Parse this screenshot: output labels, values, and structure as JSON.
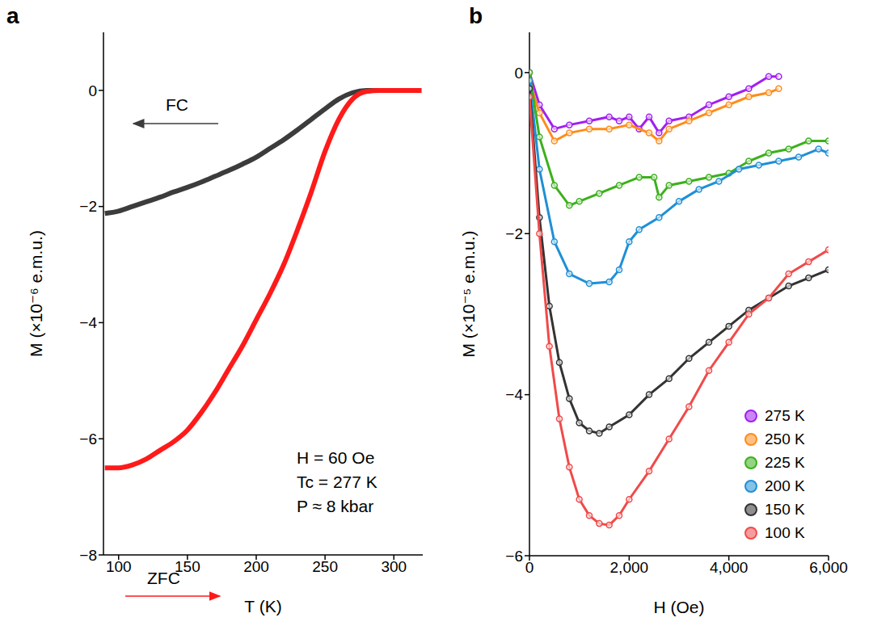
{
  "chart_data": [
    {
      "type": "line",
      "title": "a",
      "x_label": "T (K)",
      "y_label": "M (×10⁻⁶ e.m.u.)",
      "x": [
        90,
        100,
        110,
        120,
        130,
        140,
        150,
        160,
        170,
        180,
        190,
        200,
        210,
        220,
        230,
        240,
        250,
        260,
        270,
        280,
        290,
        300,
        310,
        320
      ],
      "series": [
        {
          "name": "FC",
          "color": "#3c3c3c",
          "values": [
            -2.12,
            -2.08,
            -2.0,
            -1.92,
            -1.84,
            -1.75,
            -1.67,
            -1.58,
            -1.48,
            -1.38,
            -1.27,
            -1.15,
            -1.0,
            -0.85,
            -0.68,
            -0.5,
            -0.32,
            -0.15,
            -0.04,
            0,
            0,
            0,
            0,
            0
          ]
        },
        {
          "name": "ZFC",
          "color": "#ff1a1a",
          "values": [
            -6.5,
            -6.5,
            -6.45,
            -6.35,
            -6.2,
            -6.05,
            -5.85,
            -5.55,
            -5.2,
            -4.8,
            -4.4,
            -3.95,
            -3.5,
            -3.0,
            -2.4,
            -1.75,
            -1.05,
            -0.5,
            -0.15,
            -0.02,
            0,
            0,
            0,
            0
          ]
        }
      ],
      "xlim": [
        89,
        321
      ],
      "ylim": [
        -8,
        1
      ],
      "xticks": [
        100,
        150,
        200,
        250,
        300
      ],
      "yticks": [
        -8,
        -6,
        -4,
        -2,
        0
      ],
      "line_style": "solid",
      "annotations": [
        "H = 60 Oe",
        "Tc = 277 K",
        "P ≈ 8 kbar"
      ]
    },
    {
      "type": "scatter",
      "title": "b",
      "x_label": "H (Oe)",
      "y_label": "M (×10⁻⁵ e.m.u.)",
      "series": [
        {
          "name": "275 K",
          "color": "#a020f0",
          "x": [
            0,
            200,
            500,
            800,
            1200,
            1600,
            1800,
            2000,
            2200,
            2400,
            2600,
            2800,
            3200,
            3600,
            4000,
            4400,
            4800,
            5000
          ],
          "values": [
            0,
            -0.4,
            -0.7,
            -0.65,
            -0.6,
            -0.55,
            -0.6,
            -0.55,
            -0.7,
            -0.55,
            -0.75,
            -0.6,
            -0.55,
            -0.4,
            -0.3,
            -0.2,
            -0.05,
            -0.05
          ]
        },
        {
          "name": "250 K",
          "color": "#ff8c1a",
          "x": [
            0,
            200,
            500,
            800,
            1200,
            1600,
            2000,
            2400,
            2600,
            2800,
            3200,
            3600,
            4000,
            4400,
            4800,
            5000
          ],
          "values": [
            -0.1,
            -0.5,
            -0.85,
            -0.75,
            -0.7,
            -0.7,
            -0.65,
            -0.75,
            -0.85,
            -0.7,
            -0.6,
            -0.5,
            -0.4,
            -0.3,
            -0.25,
            -0.2
          ]
        },
        {
          "name": "225 K",
          "color": "#3cb01c",
          "x": [
            0,
            200,
            500,
            800,
            1000,
            1400,
            1800,
            2200,
            2500,
            2600,
            2800,
            3200,
            3600,
            4000,
            4400,
            4800,
            5200,
            5600,
            6000
          ],
          "values": [
            0,
            -0.8,
            -1.4,
            -1.65,
            -1.6,
            -1.5,
            -1.4,
            -1.3,
            -1.3,
            -1.55,
            -1.4,
            -1.35,
            -1.3,
            -1.25,
            -1.1,
            -1.0,
            -0.95,
            -0.85,
            -0.85
          ]
        },
        {
          "name": "200 K",
          "color": "#1f8fd6",
          "x": [
            0,
            200,
            500,
            800,
            1200,
            1600,
            1800,
            2000,
            2200,
            2600,
            3000,
            3400,
            3800,
            4200,
            4600,
            5000,
            5400,
            5800,
            6000
          ],
          "values": [
            -0.1,
            -1.2,
            -2.1,
            -2.5,
            -2.62,
            -2.6,
            -2.45,
            -2.1,
            -1.95,
            -1.8,
            -1.6,
            -1.45,
            -1.35,
            -1.2,
            -1.15,
            -1.1,
            -1.05,
            -0.95,
            -1.0
          ]
        },
        {
          "name": "150 K",
          "color": "#333333",
          "x": [
            0,
            200,
            400,
            600,
            800,
            1000,
            1200,
            1400,
            1600,
            2000,
            2400,
            2800,
            3200,
            3600,
            4000,
            4400,
            4800,
            5200,
            5600,
            6000
          ],
          "values": [
            -0.2,
            -1.8,
            -2.9,
            -3.6,
            -4.05,
            -4.35,
            -4.45,
            -4.48,
            -4.4,
            -4.25,
            -4.0,
            -3.8,
            -3.55,
            -3.35,
            -3.15,
            -2.95,
            -2.8,
            -2.65,
            -2.55,
            -2.45
          ]
        },
        {
          "name": "100 K",
          "color": "#f04a4a",
          "x": [
            0,
            200,
            400,
            600,
            800,
            1000,
            1200,
            1400,
            1600,
            1800,
            2000,
            2400,
            2800,
            3200,
            3600,
            4000,
            4400,
            4800,
            5200,
            5600,
            6000
          ],
          "values": [
            -0.3,
            -2.0,
            -3.4,
            -4.3,
            -4.9,
            -5.3,
            -5.5,
            -5.6,
            -5.62,
            -5.5,
            -5.3,
            -4.95,
            -4.55,
            -4.15,
            -3.7,
            -3.35,
            -3.0,
            -2.8,
            -2.5,
            -2.35,
            -2.2
          ]
        }
      ],
      "xlim": [
        0,
        6000
      ],
      "ylim": [
        -6,
        0.5
      ],
      "xticks": [
        0,
        {
          "value": 2000,
          "label": "2,000"
        },
        {
          "value": 4000,
          "label": "4,000"
        },
        {
          "value": 6000,
          "label": "6,000"
        }
      ],
      "yticks": [
        -6,
        -4,
        -2,
        0
      ],
      "marker": "circle",
      "line_style": "solid",
      "legend": "lower right"
    }
  ]
}
